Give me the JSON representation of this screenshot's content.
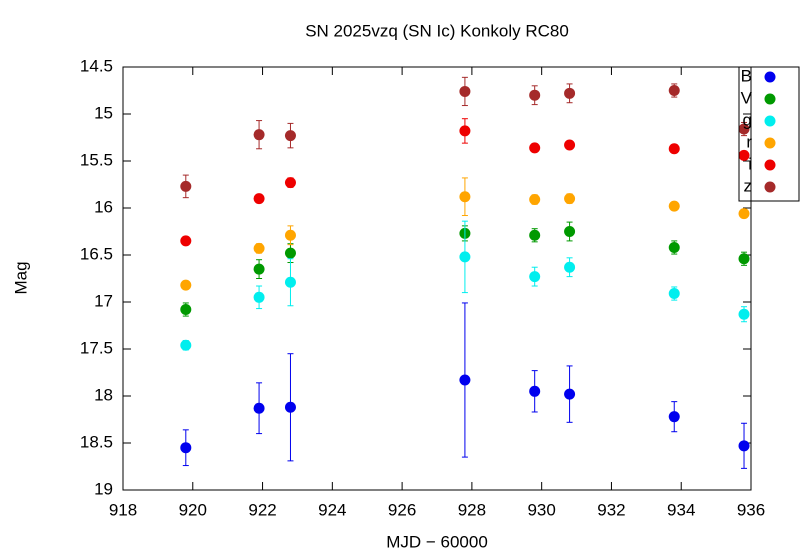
{
  "chart_data": {
    "type": "scatter",
    "title": "SN 2025vzq (SN Ic) Konkoly RC80",
    "x_label": "MJD − 60000",
    "y_label": "Mag",
    "x": [
      919.8,
      921.9,
      922.8,
      927.8,
      929.8,
      930.8,
      933.8,
      935.8
    ],
    "xlim": [
      918,
      936
    ],
    "xticks": [
      918,
      920,
      922,
      924,
      926,
      928,
      930,
      932,
      934,
      936
    ],
    "ylim": [
      14.5,
      19
    ],
    "yticks": [
      14.5,
      15,
      15.5,
      16,
      16.5,
      17,
      17.5,
      18,
      18.5,
      19
    ],
    "y_inverted": true,
    "grid": false,
    "legend": "upper right",
    "series": [
      {
        "name": "B",
        "color": "#0000ee",
        "values": [
          18.55,
          18.13,
          18.12,
          17.83,
          17.95,
          17.98,
          18.22,
          18.53
        ],
        "errors": [
          0.19,
          0.27,
          0.57,
          0.82,
          0.22,
          0.3,
          0.16,
          0.24
        ]
      },
      {
        "name": "V",
        "color": "#009900",
        "values": [
          17.08,
          16.65,
          16.48,
          16.27,
          16.29,
          16.25,
          16.42,
          16.54
        ],
        "errors": [
          0.07,
          0.1,
          0.1,
          0.08,
          0.07,
          0.1,
          0.07,
          0.07
        ]
      },
      {
        "name": "g",
        "color": "#00eeee",
        "values": [
          17.46,
          16.95,
          16.79,
          16.52,
          16.73,
          16.63,
          16.91,
          17.13
        ],
        "errors": [
          0.05,
          0.12,
          0.25,
          0.38,
          0.1,
          0.1,
          0.07,
          0.08
        ]
      },
      {
        "name": "r",
        "color": "#ffa500",
        "values": [
          16.82,
          16.43,
          16.29,
          15.88,
          15.91,
          15.9,
          15.98,
          16.06
        ],
        "errors": [
          0.04,
          0.05,
          0.1,
          0.2,
          0.05,
          0.05,
          0.04,
          0.04
        ]
      },
      {
        "name": "i",
        "color": "#ee0000",
        "values": [
          16.35,
          15.9,
          15.73,
          15.18,
          15.36,
          15.33,
          15.37,
          15.44
        ],
        "errors": [
          0.03,
          0.03,
          0.05,
          0.13,
          0.03,
          0.03,
          0.03,
          0.03
        ]
      },
      {
        "name": "z",
        "color": "#a52a2a",
        "values": [
          15.77,
          15.22,
          15.23,
          14.76,
          14.8,
          14.78,
          14.75,
          15.16
        ],
        "errors": [
          0.12,
          0.15,
          0.13,
          0.15,
          0.1,
          0.1,
          0.07,
          0.07
        ]
      }
    ]
  }
}
